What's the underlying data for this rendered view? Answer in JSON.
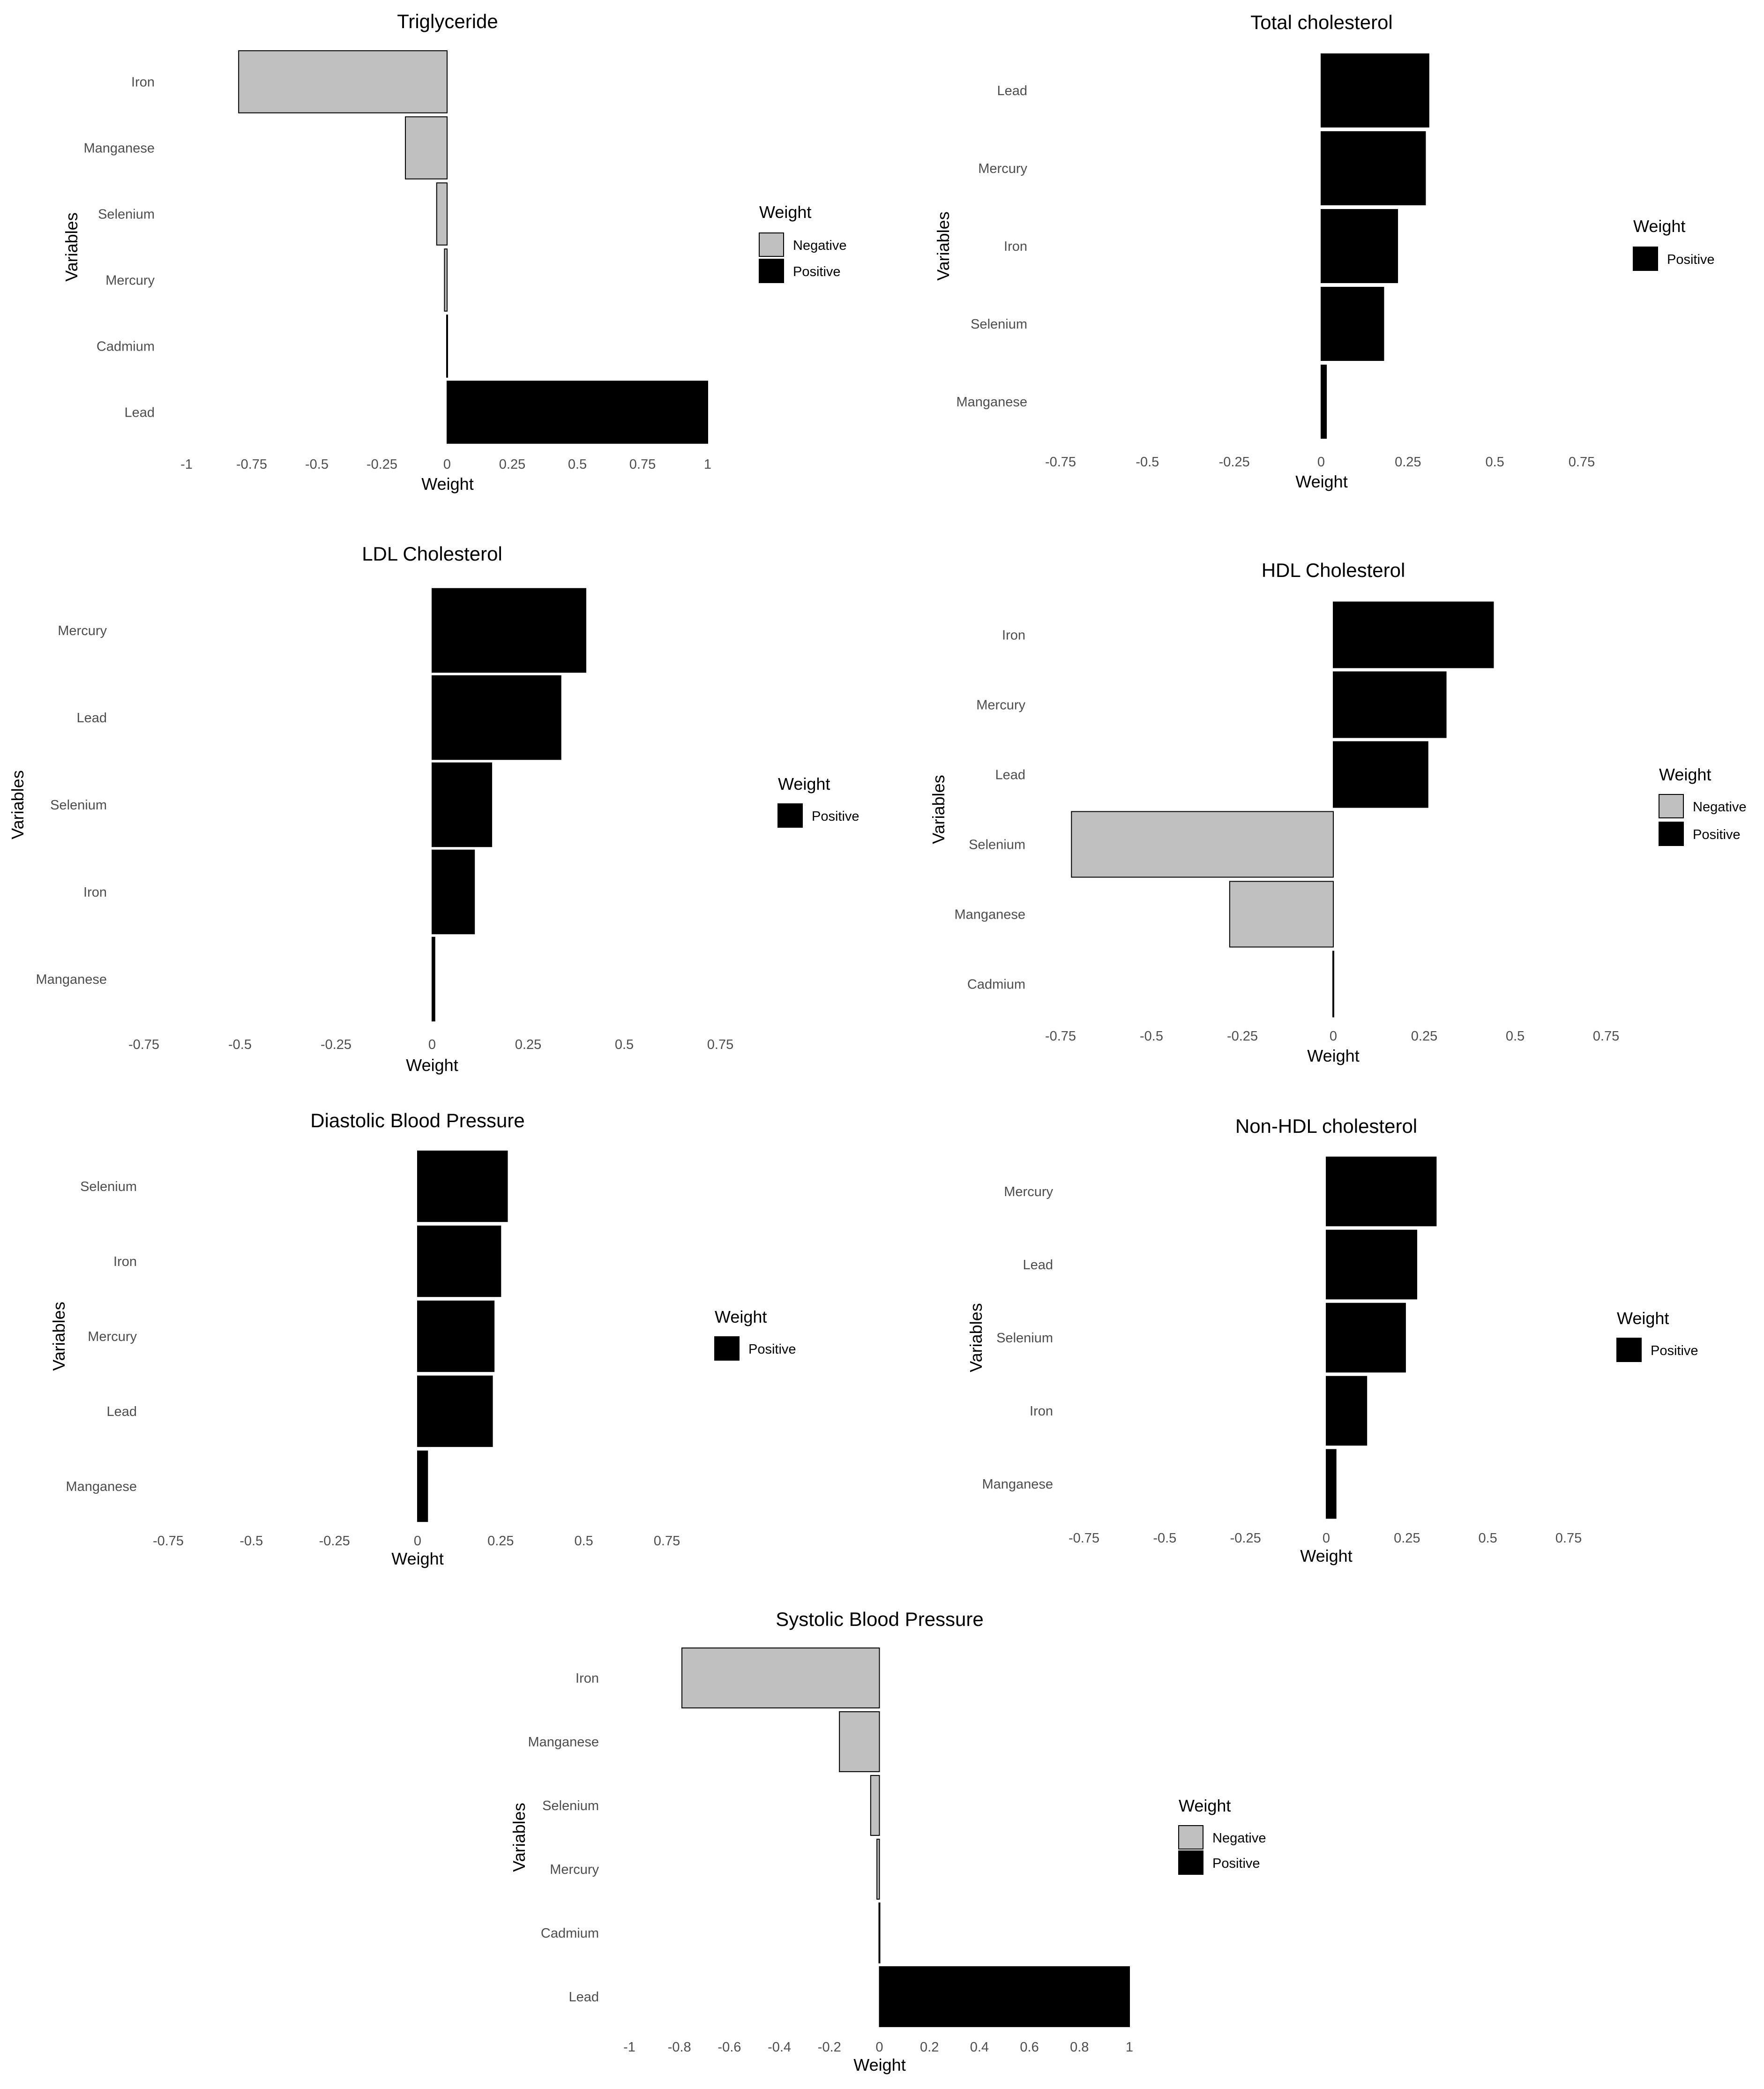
{
  "colors": {
    "Negative": "#c0c0c0",
    "Positive": "#000000"
  },
  "chart_data": [
    {
      "type": "bar",
      "orientation": "horizontal",
      "title": "Triglyceride",
      "xlabel": "Weight",
      "ylabel": "Variables",
      "xlim": [
        -1,
        1
      ],
      "xticks": [
        -1,
        -0.75,
        -0.5,
        -0.25,
        0,
        0.25,
        0.5,
        0.75,
        1
      ],
      "xtick_labels": [
        "-1",
        "-0.75",
        "-0.5",
        "-0.25",
        "0",
        "0.25",
        "0.5",
        "0.75",
        "1"
      ],
      "categories": [
        "Iron",
        "Manganese",
        "Selenium",
        "Mercury",
        "Cadmium",
        "Lead"
      ],
      "values": [
        -0.8,
        -0.16,
        -0.04,
        -0.01,
        0.0,
        1.0
      ],
      "legend_title": "Weight",
      "legend": [
        "Negative",
        "Positive"
      ],
      "grid": false
    },
    {
      "type": "bar",
      "orientation": "horizontal",
      "title": "Total cholesterol",
      "xlabel": "Weight",
      "ylabel": "Variables",
      "xlim": [
        -0.75,
        0.75
      ],
      "xticks": [
        -0.75,
        -0.5,
        -0.25,
        0,
        0.25,
        0.5,
        0.75
      ],
      "xtick_labels": [
        "-0.75",
        "-0.5",
        "-0.25",
        "0",
        "0.25",
        "0.5",
        "0.75"
      ],
      "categories": [
        "Lead",
        "Mercury",
        "Iron",
        "Selenium",
        "Manganese"
      ],
      "values": [
        0.31,
        0.3,
        0.22,
        0.18,
        0.015
      ],
      "legend_title": "Weight",
      "legend": [
        "Positive"
      ],
      "grid": false
    },
    {
      "type": "bar",
      "orientation": "horizontal",
      "title": "LDL Cholesterol",
      "xlabel": "Weight",
      "ylabel": "Variables",
      "xlim": [
        -0.75,
        0.75
      ],
      "xticks": [
        -0.75,
        -0.5,
        -0.25,
        0,
        0.25,
        0.5,
        0.75
      ],
      "xtick_labels": [
        "-0.75",
        "-0.5",
        "-0.25",
        "0",
        "0.25",
        "0.5",
        "0.75"
      ],
      "categories": [
        "Mercury",
        "Lead",
        "Selenium",
        "Iron",
        "Manganese"
      ],
      "values": [
        0.4,
        0.335,
        0.155,
        0.11,
        0.007
      ],
      "legend_title": "Weight",
      "legend": [
        "Positive"
      ],
      "grid": false
    },
    {
      "type": "bar",
      "orientation": "horizontal",
      "title": "HDL Cholesterol",
      "xlabel": "Weight",
      "ylabel": "Variables",
      "xlim": [
        -0.75,
        0.75
      ],
      "xticks": [
        -0.75,
        -0.5,
        -0.25,
        0,
        0.25,
        0.5,
        0.75
      ],
      "xtick_labels": [
        "-0.75",
        "-0.5",
        "-0.25",
        "0",
        "0.25",
        "0.5",
        "0.75"
      ],
      "categories": [
        "Iron",
        "Mercury",
        "Lead",
        "Selenium",
        "Manganese",
        "Cadmium"
      ],
      "values": [
        0.44,
        0.31,
        0.26,
        -0.72,
        -0.285,
        0.0
      ],
      "legend_title": "Weight",
      "legend": [
        "Negative",
        "Positive"
      ],
      "grid": false
    },
    {
      "type": "bar",
      "orientation": "horizontal",
      "title": "Diastolic Blood Pressure",
      "xlabel": "Weight",
      "ylabel": "Variables",
      "xlim": [
        -0.75,
        0.75
      ],
      "xticks": [
        -0.75,
        -0.5,
        -0.25,
        0,
        0.25,
        0.5,
        0.75
      ],
      "xtick_labels": [
        "-0.75",
        "-0.5",
        "-0.25",
        "0",
        "0.25",
        "0.5",
        "0.75"
      ],
      "categories": [
        "Selenium",
        "Iron",
        "Mercury",
        "Lead",
        "Manganese"
      ],
      "values": [
        0.27,
        0.25,
        0.23,
        0.225,
        0.03
      ],
      "legend_title": "Weight",
      "legend": [
        "Positive"
      ],
      "grid": false
    },
    {
      "type": "bar",
      "orientation": "horizontal",
      "title": "Non-HDL cholesterol",
      "xlabel": "Weight",
      "ylabel": "Variables",
      "xlim": [
        -0.75,
        0.75
      ],
      "xticks": [
        -0.75,
        -0.5,
        -0.25,
        0,
        0.25,
        0.5,
        0.75
      ],
      "xtick_labels": [
        "-0.75",
        "-0.5",
        "-0.25",
        "0",
        "0.25",
        "0.5",
        "0.75"
      ],
      "categories": [
        "Mercury",
        "Lead",
        "Selenium",
        "Iron",
        "Manganese"
      ],
      "values": [
        0.34,
        0.28,
        0.245,
        0.125,
        0.03
      ],
      "legend_title": "Weight",
      "legend": [
        "Positive"
      ],
      "grid": false
    },
    {
      "type": "bar",
      "orientation": "horizontal",
      "title": "Systolic Blood Pressure",
      "xlabel": "Weight",
      "ylabel": "Variables",
      "xlim": [
        -1,
        1
      ],
      "xticks": [
        -1,
        -0.8,
        -0.6,
        -0.4,
        -0.2,
        0,
        0.2,
        0.4,
        0.6,
        0.8,
        1
      ],
      "xtick_labels": [
        "-1",
        "-0.8",
        "-0.6",
        "-0.4",
        "-0.2",
        "0",
        "0.2",
        "0.4",
        "0.6",
        "0.8",
        "1"
      ],
      "categories": [
        "Iron",
        "Manganese",
        "Selenium",
        "Mercury",
        "Cadmium",
        "Lead"
      ],
      "values": [
        -0.79,
        -0.16,
        -0.035,
        -0.01,
        0.0,
        1.0
      ],
      "legend_title": "Weight",
      "legend": [
        "Negative",
        "Positive"
      ],
      "grid": false
    }
  ]
}
